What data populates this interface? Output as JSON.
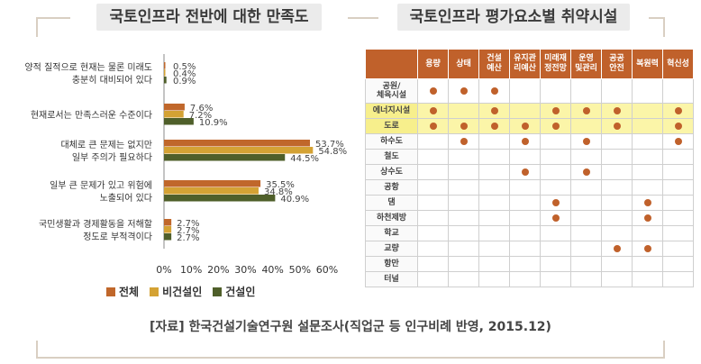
{
  "left_title": "국토인프라 전반에 대한 만족도",
  "right_title": "국토인프라 평가요소별 취약시설",
  "chart_data": {
    "type": "bar",
    "orientation": "horizontal",
    "categories": [
      [
        "양적 질적으로 현재는 물론 미래도",
        "충분히 대비되어 있다"
      ],
      [
        "현재로서는 만족스러운 수준이다"
      ],
      [
        "대체로 큰 문제는 없지만",
        "일부 주의가 필요하다"
      ],
      [
        "일부 큰 문제가 있고 위험에",
        "노출되어 있다"
      ],
      [
        "국민생활과 경제활동을 저해할",
        "정도로 부적격이다"
      ]
    ],
    "series": [
      {
        "name": "전체",
        "color": "#c0672b",
        "values": [
          0.5,
          7.6,
          53.7,
          35.5,
          2.7
        ]
      },
      {
        "name": "비건설인",
        "color": "#d4a234",
        "values": [
          0.4,
          7.2,
          54.8,
          34.8,
          2.7
        ]
      },
      {
        "name": "건설인",
        "color": "#4f5f2a",
        "values": [
          0.9,
          10.9,
          44.5,
          40.9,
          2.7
        ]
      }
    ],
    "xlim": [
      0,
      60
    ],
    "xticks": [
      "0%",
      "10%",
      "20%",
      "30%",
      "40%",
      "50%",
      "60%"
    ],
    "value_suffix": "%"
  },
  "matrix": {
    "columns": [
      [
        "용량"
      ],
      [
        "상태"
      ],
      [
        "건설",
        "예산"
      ],
      [
        "유지관",
        "리예산"
      ],
      [
        "미래재",
        "정전망"
      ],
      [
        "운영",
        "및관리"
      ],
      [
        "공공",
        "안전"
      ],
      [
        "복원력"
      ],
      [
        "혁신성"
      ]
    ],
    "rows": [
      {
        "label": [
          "공원/",
          "체육시설"
        ],
        "highlight": false,
        "marks": [
          1,
          1,
          1,
          0,
          0,
          0,
          0,
          0,
          0
        ]
      },
      {
        "label": [
          "에너지시설"
        ],
        "highlight": true,
        "marks": [
          1,
          0,
          1,
          0,
          1,
          1,
          1,
          0,
          1
        ]
      },
      {
        "label": [
          "도로"
        ],
        "highlight": true,
        "marks": [
          1,
          1,
          1,
          1,
          1,
          0,
          1,
          0,
          1
        ]
      },
      {
        "label": [
          "하수도"
        ],
        "highlight": false,
        "marks": [
          0,
          1,
          0,
          1,
          0,
          1,
          0,
          0,
          1
        ]
      },
      {
        "label": [
          "철도"
        ],
        "highlight": false,
        "marks": [
          0,
          0,
          0,
          0,
          0,
          0,
          0,
          0,
          0
        ]
      },
      {
        "label": [
          "상수도"
        ],
        "highlight": false,
        "marks": [
          0,
          0,
          0,
          1,
          0,
          1,
          0,
          0,
          0
        ]
      },
      {
        "label": [
          "공항"
        ],
        "highlight": false,
        "marks": [
          0,
          0,
          0,
          0,
          0,
          0,
          0,
          0,
          0
        ]
      },
      {
        "label": [
          "댐"
        ],
        "highlight": false,
        "marks": [
          0,
          0,
          0,
          0,
          1,
          0,
          0,
          1,
          0
        ]
      },
      {
        "label": [
          "하천제방"
        ],
        "highlight": false,
        "marks": [
          0,
          0,
          0,
          0,
          1,
          0,
          0,
          1,
          0
        ]
      },
      {
        "label": [
          "학교"
        ],
        "highlight": false,
        "marks": [
          0,
          0,
          0,
          0,
          0,
          0,
          0,
          0,
          0
        ]
      },
      {
        "label": [
          "교량"
        ],
        "highlight": false,
        "marks": [
          0,
          0,
          0,
          0,
          0,
          0,
          1,
          1,
          0
        ]
      },
      {
        "label": [
          "항만"
        ],
        "highlight": false,
        "marks": [
          0,
          0,
          0,
          0,
          0,
          0,
          0,
          0,
          0
        ]
      },
      {
        "label": [
          "터널"
        ],
        "highlight": false,
        "marks": [
          0,
          0,
          0,
          0,
          0,
          0,
          0,
          0,
          0
        ]
      }
    ]
  },
  "source": "[자료] 한국건설기술연구원 설문조사(직업군 등 인구비례 반영, 2015.12)"
}
